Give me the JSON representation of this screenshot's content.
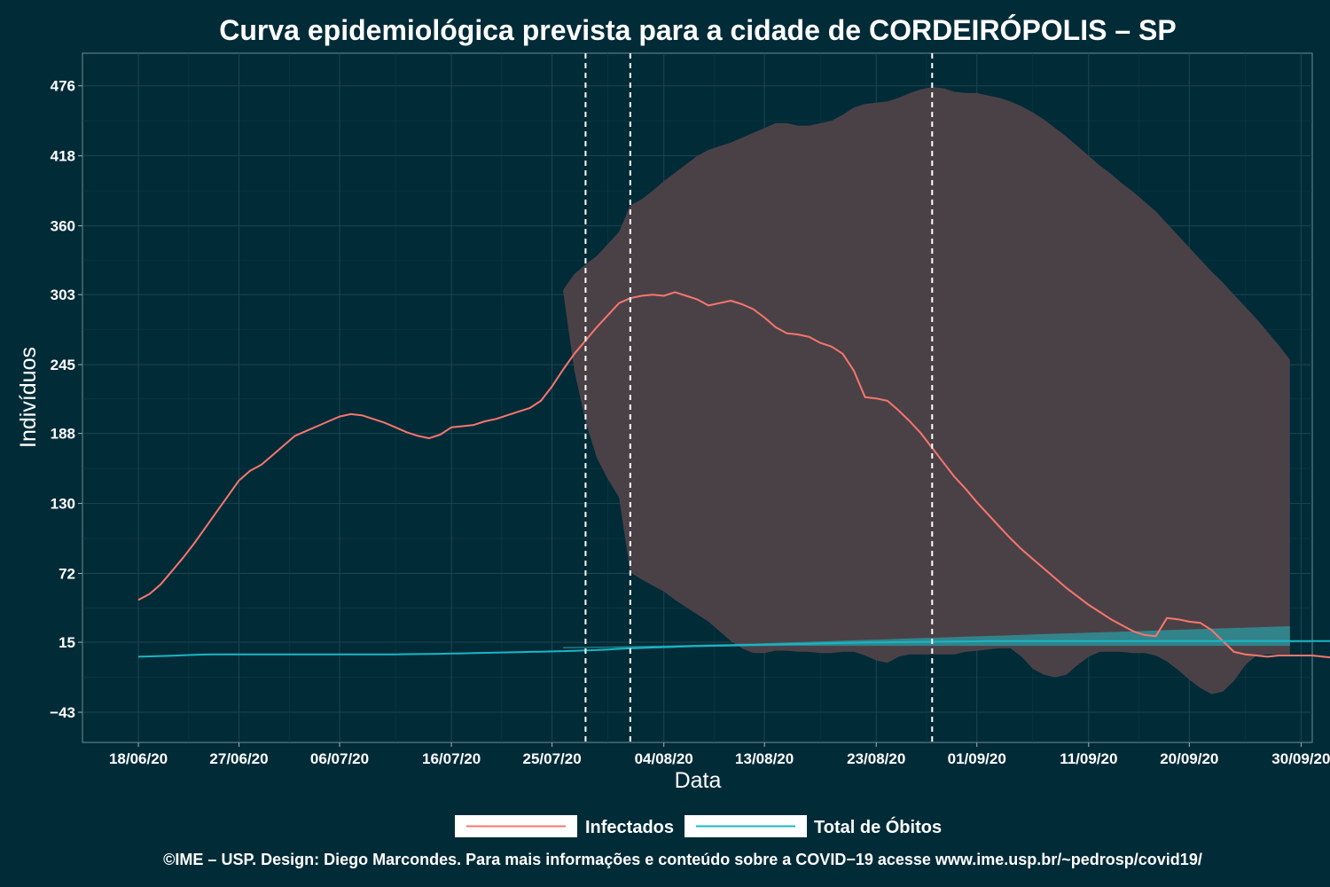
{
  "chart_data": {
    "type": "line",
    "title": "Curva epidemiológica prevista para a cidade de CORDEIRÓPOLIS – SP",
    "xlabel": "Data",
    "ylabel": "Indivíduos",
    "x_start": "2020-06-18",
    "x_end": "2020-09-30",
    "xlim": [
      "2020-06-13",
      "2020-10-01"
    ],
    "ylim": [
      -68,
      503
    ],
    "x_ticks": [
      "18/06/20",
      "27/06/20",
      "06/07/20",
      "16/07/20",
      "25/07/20",
      "04/08/20",
      "13/08/20",
      "23/08/20",
      "01/09/20",
      "11/09/20",
      "20/09/20",
      "30/09/20"
    ],
    "y_ticks": [
      476,
      418,
      360,
      303,
      245,
      188,
      130,
      72,
      15,
      -43
    ],
    "y_tick_labels": [
      "476",
      "418",
      "360",
      "303",
      "245",
      "188",
      "130",
      "72",
      "15",
      "−43"
    ],
    "grid": true,
    "legend_position": "bottom",
    "vertical_lines": [
      "2020-07-28",
      "2020-08-01",
      "2020-08-28"
    ],
    "series": [
      {
        "name": "Infectados",
        "color": "#f8766d",
        "values": [
          50,
          55,
          63,
          74,
          85,
          97,
          110,
          123,
          136,
          149,
          157,
          162,
          170,
          178,
          186,
          190,
          194,
          198,
          202,
          204,
          203,
          200,
          197,
          193,
          189,
          186,
          184,
          187,
          193,
          194,
          195,
          198,
          200,
          203,
          206,
          209,
          215,
          227,
          241,
          254,
          265,
          276,
          286,
          296,
          300,
          302,
          303,
          302,
          305,
          302,
          299,
          294,
          296,
          298,
          295,
          291,
          284,
          276,
          271,
          270,
          268,
          263,
          260,
          254,
          240,
          218,
          217,
          215,
          207,
          198,
          188,
          176,
          164,
          152,
          142,
          131,
          121,
          111,
          101,
          92,
          84,
          76,
          68,
          60,
          53,
          46,
          40,
          34,
          29,
          24,
          21,
          20,
          35,
          34,
          32,
          31,
          25,
          16,
          7,
          5,
          4,
          3,
          4,
          4,
          4,
          4,
          3,
          2
        ]
      },
      {
        "name": "Total de Óbitos",
        "color": "#17b8c6",
        "values": [
          3,
          3.3,
          3.6,
          3.9,
          4.2,
          4.5,
          4.8,
          4.9,
          4.9,
          4.9,
          4.9,
          4.9,
          4.9,
          4.9,
          4.9,
          4.9,
          4.9,
          4.9,
          4.9,
          4.9,
          4.9,
          4.9,
          4.9,
          5,
          5.1,
          5.2,
          5.3,
          5.4,
          5.6,
          5.8,
          6,
          6.2,
          6.4,
          6.6,
          6.8,
          7,
          7.2,
          7.4,
          7.6,
          7.9,
          8.2,
          8.5,
          9,
          9.5,
          10,
          10.3,
          10.6,
          10.9,
          11.2,
          11.5,
          11.8,
          12,
          12.2,
          12.4,
          12.6,
          12.8,
          13,
          13.2,
          13.4,
          13.6,
          13.8,
          14,
          14.2,
          14.4,
          14.6,
          14.8,
          14.9,
          15,
          15.1,
          15.2,
          15.3,
          15.4,
          15.5,
          15.6,
          15.7,
          15.8,
          15.9,
          16,
          16,
          16,
          16,
          16,
          16,
          16,
          16,
          16,
          16,
          16,
          16,
          16,
          16,
          16,
          16,
          16,
          16,
          16,
          16,
          16,
          16,
          16,
          16,
          16,
          16,
          16,
          16,
          16,
          16,
          16
        ]
      }
    ],
    "bands": [
      {
        "start": "2020-07-26",
        "color": "#4a4147",
        "upper": [
          307,
          320,
          328,
          335,
          345,
          355,
          377,
          382,
          389,
          397,
          404,
          411,
          418,
          423,
          426,
          429,
          433,
          437,
          441,
          445,
          445,
          443,
          443,
          445,
          447,
          452,
          458,
          461,
          462,
          463,
          466,
          470,
          473,
          475,
          474,
          471,
          470,
          470,
          468,
          466,
          463,
          459,
          454,
          448,
          441,
          434,
          426,
          418,
          410,
          403,
          395,
          388,
          380,
          372,
          362,
          352,
          342,
          332,
          322,
          313,
          303,
          293,
          283,
          272,
          261,
          249
        ],
        "lower": [
          305,
          240,
          198,
          168,
          150,
          135,
          73,
          67,
          62,
          57,
          50,
          44,
          38,
          32,
          24,
          16,
          10,
          6,
          6,
          8,
          8,
          7,
          7,
          6,
          6,
          7,
          7,
          4,
          0,
          -2,
          3,
          5,
          5,
          5,
          5,
          5,
          7,
          8,
          9,
          10,
          10,
          3,
          -7,
          -12,
          -14,
          -12,
          -4,
          3,
          7,
          7,
          7,
          6,
          6,
          4,
          -1,
          -8,
          -16,
          -23,
          -28,
          -26,
          -17,
          -4,
          4,
          5,
          5,
          5
        ]
      },
      {
        "start": "2020-07-26",
        "color": "#2f8f98",
        "upper": [
          11,
          11.1,
          11.2,
          11.3,
          11.4,
          11.5,
          11.7,
          11.9,
          12.1,
          12.3,
          12.5,
          12.7,
          12.9,
          13.1,
          13.3,
          13.5,
          13.7,
          13.9,
          14.2,
          14.5,
          14.8,
          15.1,
          15.4,
          15.7,
          16,
          16.3,
          16.6,
          16.9,
          17.2,
          17.5,
          17.8,
          18.1,
          18.4,
          18.7,
          19,
          19.3,
          19.6,
          19.9,
          20.2,
          20.5,
          20.8,
          21.1,
          21.4,
          21.7,
          22,
          22.3,
          22.6,
          22.9,
          23.2,
          23.5,
          23.8,
          24.1,
          24.4,
          24.7,
          25,
          25.3,
          25.6,
          25.9,
          26.2,
          26.5,
          26.8,
          27.1,
          27.4,
          27.7,
          28,
          28.3
        ],
        "lower": [
          10,
          10.1,
          10.2,
          10.3,
          10.4,
          10.5,
          10.6,
          10.7,
          10.8,
          10.9,
          11,
          11.1,
          11.2,
          11.3,
          11.4,
          11.5,
          11.6,
          11.7,
          11.8,
          11.9,
          12,
          12,
          12,
          12,
          12,
          12,
          12,
          12,
          12,
          12,
          12,
          12,
          12,
          12,
          12,
          12,
          12,
          12,
          12,
          12,
          12,
          12,
          12,
          12,
          12,
          12,
          12,
          12,
          12,
          12,
          12,
          12,
          12,
          12,
          12,
          12,
          12,
          12,
          12,
          12,
          12,
          12,
          12,
          12,
          12,
          12
        ]
      }
    ]
  },
  "footer": "©IME – USP. Design: Diego Marcondes. Para mais informações e conteúdo sobre a COVID−19 acesse www.ime.usp.br/~pedrosp/covid19/"
}
